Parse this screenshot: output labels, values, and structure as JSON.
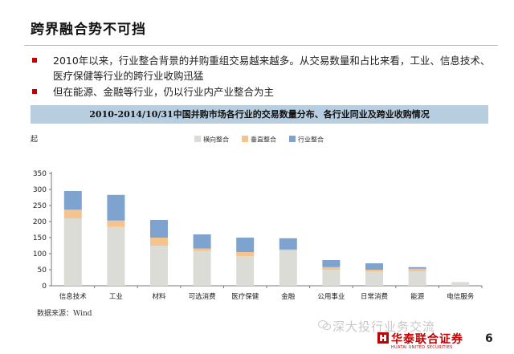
{
  "slide": {
    "title": "跨界融合势不可挡",
    "bullets": [
      "2010年以来，行业整合背景的并购重组交易越来越多。从交易数量和占比来看，工业、信息技术、医疗保健等行业的跨行业收购迅猛",
      "但在能源、金融等行业，仍以行业内产业整合为主"
    ],
    "chart_banner": "2010-2014/10/31中国并购市场各行业的交易数量分布、各行业同业及跨业收购情况",
    "source": "数据来源：Wind",
    "watermark": "深大投行业务交流",
    "logo_text": "华泰联合证券",
    "logo_sub": "HUATAI UNITED SECURITIES",
    "page_number": "6"
  },
  "chart_data": {
    "type": "bar",
    "stacked": true,
    "unit_label": "起",
    "categories": [
      "信息技术",
      "工业",
      "材料",
      "可选消费",
      "医疗保健",
      "金融",
      "公用事业",
      "日常消费",
      "能源",
      "电信服务"
    ],
    "series": [
      {
        "name": "横向整合",
        "color": "#dcdcd6",
        "values": [
          210,
          183,
          125,
          108,
          92,
          110,
          50,
          44,
          45,
          10
        ]
      },
      {
        "name": "垂直整合",
        "color": "#f5c48e",
        "values": [
          27,
          20,
          25,
          8,
          13,
          3,
          8,
          6,
          8,
          1
        ]
      },
      {
        "name": "行业整合",
        "color": "#7ea3cf",
        "values": [
          58,
          80,
          55,
          44,
          45,
          35,
          22,
          20,
          5,
          0
        ]
      }
    ],
    "ylim": [
      0,
      350
    ],
    "yticks": [
      0,
      50,
      100,
      150,
      200,
      250,
      300,
      350
    ],
    "legend": "top",
    "grid": false
  }
}
